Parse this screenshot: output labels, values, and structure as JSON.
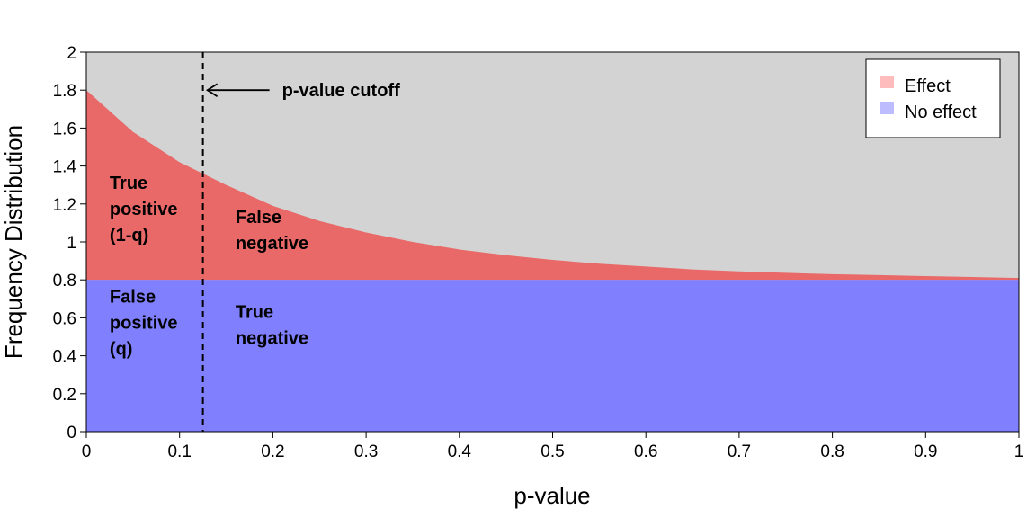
{
  "chart_data": {
    "type": "area",
    "xlabel": "p-value",
    "ylabel": "Frequency Distribution",
    "xlim": [
      0,
      1
    ],
    "ylim": [
      0,
      2
    ],
    "x_ticks": [
      0,
      0.1,
      0.2,
      0.3,
      0.4,
      0.5,
      0.6,
      0.7,
      0.8,
      0.9,
      1
    ],
    "x_tick_labels": [
      "0",
      "0.1",
      "0.2",
      "0.3",
      "0.4",
      "0.5",
      "0.6",
      "0.7",
      "0.8",
      "0.9",
      "1"
    ],
    "y_ticks": [
      0,
      0.2,
      0.4,
      0.6,
      0.8,
      1,
      1.2,
      1.4,
      1.6,
      1.8,
      2
    ],
    "y_tick_labels": [
      "0",
      "0.2",
      "0.4",
      "0.6",
      "0.8",
      "1",
      "1.2",
      "1.4",
      "1.6",
      "1.8",
      "2"
    ],
    "series": [
      {
        "name": "No effect",
        "color": "#8080ff",
        "x": [
          0,
          1
        ],
        "y": [
          0.8,
          0.8
        ]
      },
      {
        "name": "Effect",
        "color": "#e96868",
        "x": [
          0,
          0.05,
          0.1,
          0.125,
          0.15,
          0.2,
          0.25,
          0.3,
          0.35,
          0.4,
          0.45,
          0.5,
          0.55,
          0.6,
          0.65,
          0.7,
          0.75,
          0.8,
          0.85,
          0.9,
          0.95,
          1
        ],
        "y": [
          1.8,
          1.58,
          1.42,
          1.36,
          1.3,
          1.19,
          1.11,
          1.05,
          1.0,
          0.96,
          0.93,
          0.905,
          0.885,
          0.87,
          0.855,
          0.845,
          0.837,
          0.83,
          0.825,
          0.82,
          0.815,
          0.81
        ]
      }
    ],
    "background_color": "#d3d3d3",
    "cutoff": {
      "x": 0.125,
      "label": "p-value cutoff"
    },
    "region_labels": [
      {
        "lines": [
          "True",
          "positive",
          "(1-q)"
        ],
        "x": 0.025,
        "y": 1.28
      },
      {
        "lines": [
          "False",
          "negative"
        ],
        "x": 0.16,
        "y": 1.1
      },
      {
        "lines": [
          "False",
          "positive",
          "(q)"
        ],
        "x": 0.025,
        "y": 0.68
      },
      {
        "lines": [
          "True",
          "negative"
        ],
        "x": 0.16,
        "y": 0.6
      }
    ],
    "legend": {
      "position": "top-right",
      "items": [
        {
          "label": "Effect",
          "color": "#ffbcbc"
        },
        {
          "label": "No effect",
          "color": "#bcbcff"
        }
      ]
    }
  }
}
